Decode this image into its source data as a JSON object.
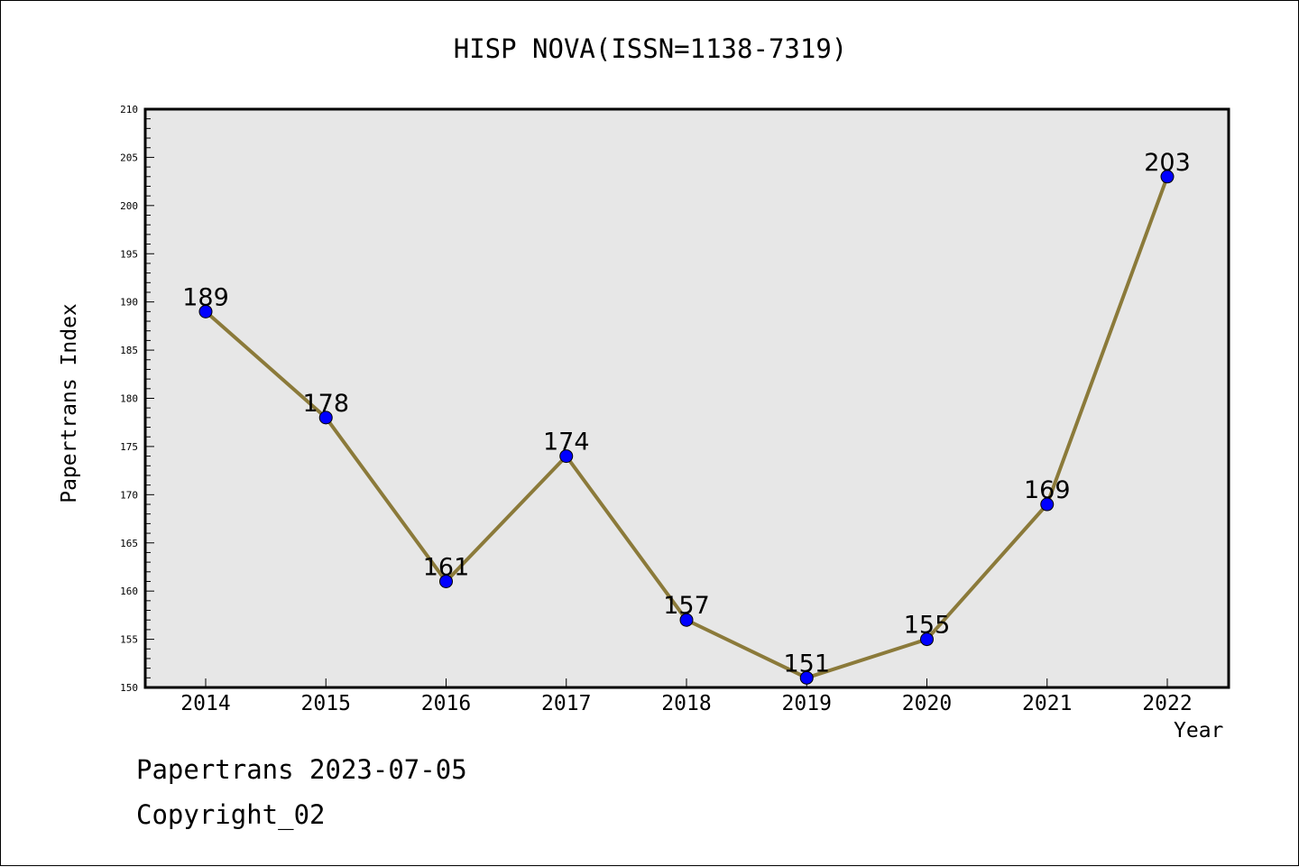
{
  "chart_data": {
    "type": "line",
    "title": "HISP NOVA(ISSN=1138-7319)",
    "xlabel": "Year",
    "ylabel": "Papertrans Index",
    "x": [
      "2014",
      "2015",
      "2016",
      "2017",
      "2018",
      "2019",
      "2020",
      "2021",
      "2022"
    ],
    "series": [
      {
        "values": [
          189,
          178,
          161,
          174,
          157,
          151,
          155,
          169,
          203
        ]
      }
    ],
    "ylim": [
      150,
      210
    ],
    "yticks": [
      150,
      155,
      160,
      165,
      170,
      175,
      180,
      185,
      190,
      195,
      200,
      205,
      210
    ],
    "data_labels": [
      "189",
      "178",
      "161",
      "174",
      "157",
      "151",
      "155",
      "169",
      "203"
    ],
    "grid": false,
    "colors": {
      "line": "#8b7a3a",
      "marker": "#0000ff",
      "plot_bg": "#e7e7e7"
    }
  },
  "footer": {
    "line1": "Papertrans 2023-07-05",
    "line2": "Copyright_02"
  }
}
